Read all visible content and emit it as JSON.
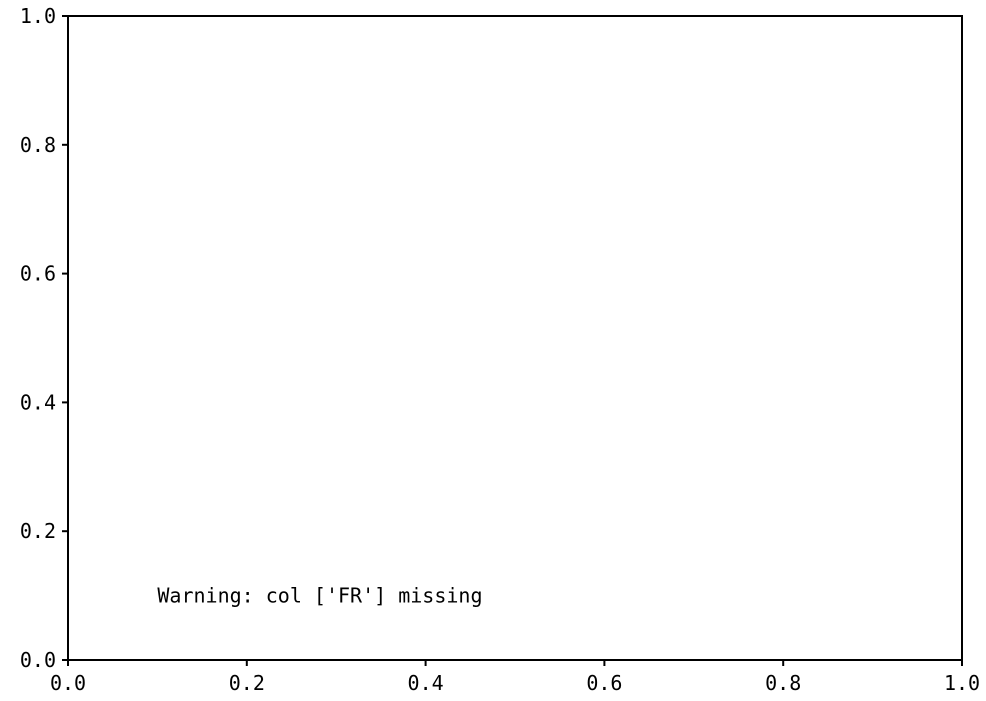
{
  "chart_data": {
    "type": "scatter",
    "title": "",
    "xlabel": "",
    "ylabel": "",
    "xlim": [
      0.0,
      1.0
    ],
    "ylim": [
      0.0,
      1.0
    ],
    "x_ticks": [
      "0.0",
      "0.2",
      "0.4",
      "0.6",
      "0.8",
      "1.0"
    ],
    "y_ticks": [
      "0.0",
      "0.2",
      "0.4",
      "0.6",
      "0.8",
      "1.0"
    ],
    "grid": false,
    "series": [],
    "annotations": [
      {
        "text": "Warning: col ['FR'] missing",
        "x": 0.1,
        "y": 0.1
      }
    ]
  },
  "colors": {
    "axis": "#000000",
    "background": "#ffffff",
    "text": "#000000"
  }
}
